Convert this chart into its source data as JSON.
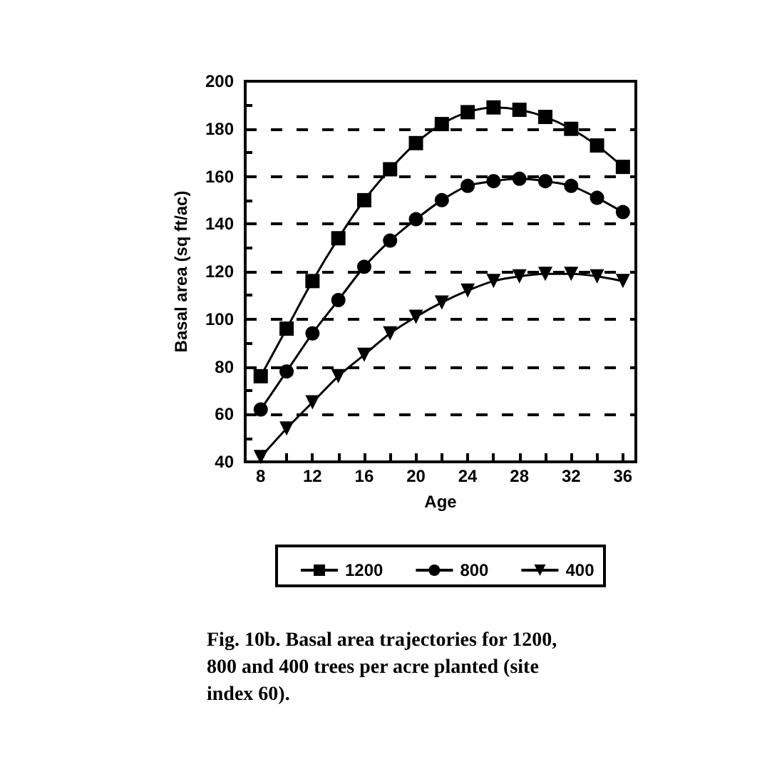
{
  "chart_data": {
    "type": "line",
    "xlabel": "Age",
    "ylabel": "Basal area (sq ft/ac)",
    "x": [
      8,
      10,
      12,
      14,
      16,
      18,
      20,
      22,
      24,
      26,
      28,
      30,
      32,
      34,
      36
    ],
    "series": [
      {
        "name": "1200",
        "color": "#000000",
        "marker": "square",
        "values": [
          76,
          96,
          116,
          134,
          150,
          163,
          174,
          182,
          187,
          189,
          188,
          185,
          180,
          173,
          164
        ]
      },
      {
        "name": "800",
        "color": "#000000",
        "marker": "circle",
        "values": [
          62,
          78,
          94,
          108,
          122,
          133,
          142,
          150,
          156,
          158,
          159,
          158,
          156,
          151,
          145
        ]
      },
      {
        "name": "400",
        "color": "#000000",
        "marker": "triangle",
        "values": [
          42,
          54,
          65,
          76,
          85,
          94,
          101,
          107,
          112,
          116,
          118,
          119,
          119,
          118,
          116
        ]
      }
    ],
    "xlim": [
      6.8,
      37
    ],
    "xticks": [
      8,
      {
        "value": 10,
        "label": null
      },
      12,
      {
        "value": 14,
        "label": null
      },
      16,
      {
        "value": 18,
        "label": null
      },
      20,
      {
        "value": 22,
        "label": null
      },
      24,
      {
        "value": 26,
        "label": null
      },
      28,
      {
        "value": 30,
        "label": null
      },
      32,
      {
        "value": 34,
        "label": null
      },
      36
    ],
    "ylim": [
      40,
      200
    ],
    "yticks": [
      40,
      {
        "value": 50,
        "label": null
      },
      60,
      {
        "value": 70,
        "label": null
      },
      80,
      {
        "value": 90,
        "label": null
      },
      100,
      {
        "value": 110,
        "label": null
      },
      120,
      {
        "value": 130,
        "label": null
      },
      140,
      {
        "value": 150,
        "label": null
      },
      160,
      {
        "value": 170,
        "label": null
      },
      180,
      {
        "value": 190,
        "label": null
      },
      200
    ],
    "grid": "y",
    "legend": "bottom",
    "line_style": "solid",
    "annotations": [
      "Fig. 10b.  Basal area trajectories for 1200, 800 and 400 trees per acre planted (site index 60)."
    ]
  }
}
